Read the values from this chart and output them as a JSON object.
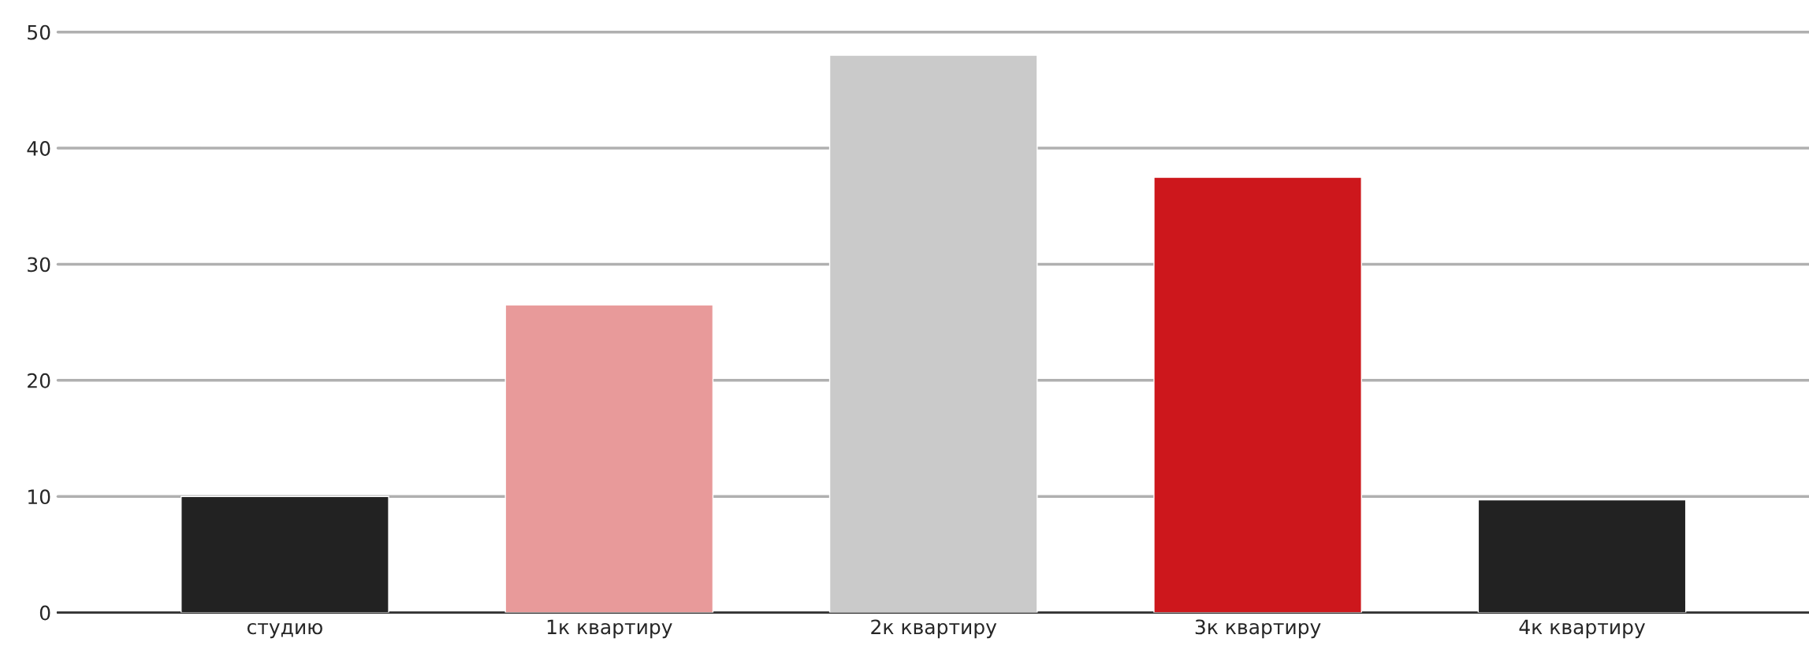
{
  "chart_data": {
    "type": "bar",
    "categories": [
      "студию",
      "1к квартиру",
      "2к квартиру",
      "3к квартиру",
      "4к квартиру"
    ],
    "values": [
      10,
      26.5,
      48,
      37.5,
      9.7
    ],
    "colors": [
      "#222222",
      "#e89a9a",
      "#cacaca",
      "#cd171c",
      "#222222"
    ],
    "ylim": [
      0,
      50
    ],
    "yticks": [
      0,
      10,
      20,
      30,
      40,
      50
    ],
    "grid": "y",
    "legend": false
  }
}
